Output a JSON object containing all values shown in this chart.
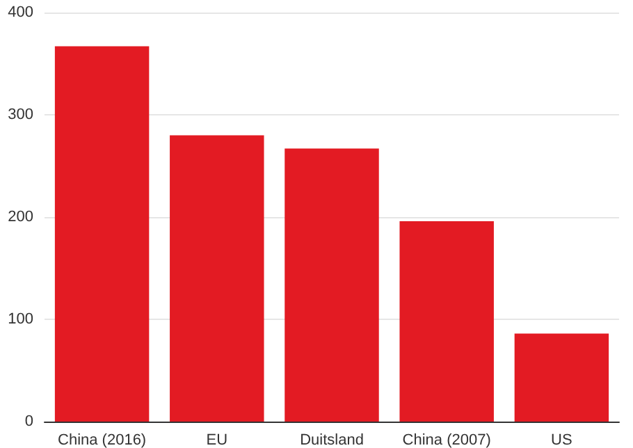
{
  "chart_data": {
    "type": "bar",
    "categories": [
      "China (2016)",
      "EU",
      "Duitsland",
      "China (2007)",
      "US"
    ],
    "values": [
      367,
      280,
      267,
      196,
      86
    ],
    "color": "#e31b23",
    "ylim": [
      0,
      400
    ],
    "yticks": [
      0,
      100,
      200,
      300,
      400
    ],
    "grid": "y"
  }
}
